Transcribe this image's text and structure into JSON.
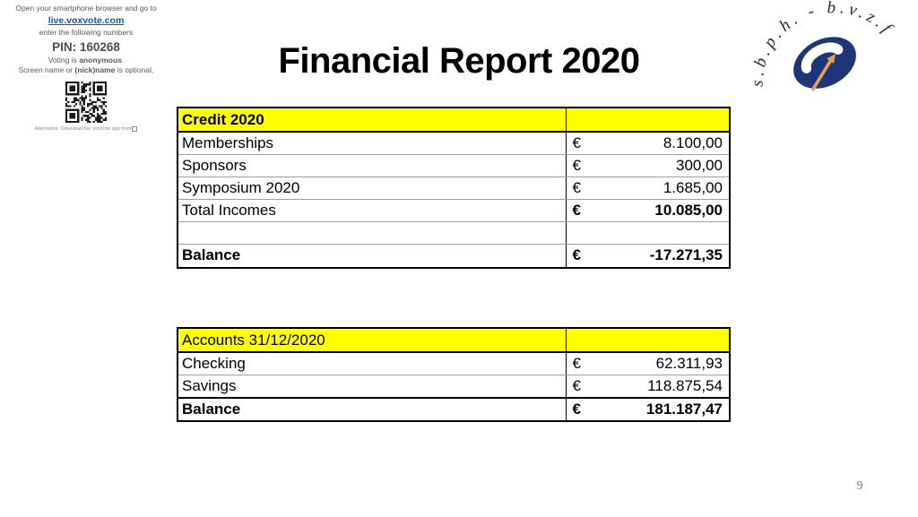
{
  "voxvote_panel": {
    "line1": "Open your smartphone browser and go to",
    "link": "live.voxvote.com",
    "line2": "enter the following numbers",
    "pin": "PIN: 160268",
    "line3_prefix": "Voting is ",
    "line3_bold": "anonymous",
    "line3_suffix": ".",
    "line4_prefix": "Screen name or ",
    "line4_bold": "(nick)name",
    "line4_suffix": " is optional.",
    "alt_text": "Alternative: Download the VoxVote app from"
  },
  "title": "Financial Report 2020",
  "logo": {
    "arc_text": "s.b.p.h. - b.v.z.f"
  },
  "credit_table": {
    "header": "Credit 2020",
    "rows": [
      {
        "label": "Memberships",
        "currency": "€",
        "value": "8.100,00"
      },
      {
        "label": "Sponsors",
        "currency": "€",
        "value": "300,00"
      },
      {
        "label": "Symposium 2020",
        "currency": "€",
        "value": "1.685,00"
      },
      {
        "label": "Total Incomes",
        "currency": "€",
        "value": "10.085,00"
      },
      {
        "label": "",
        "currency": "",
        "value": ""
      },
      {
        "label": "Balance",
        "currency": "€",
        "value": "-17.271,35"
      }
    ]
  },
  "accounts_table": {
    "header": "Accounts 31/12/2020",
    "rows": [
      {
        "label": "Checking",
        "currency": "€",
        "value": "62.311,93"
      },
      {
        "label": "Savings",
        "currency": "€",
        "value": "118.875,54"
      },
      {
        "label": "Balance",
        "currency": "€",
        "value": "181.187,47"
      }
    ]
  },
  "page_number": "9",
  "colors": {
    "table_header_bg": "#ffff00",
    "link_blue": "#1455b4",
    "panel_text_gray": "#595959",
    "logo_navy": "#203478",
    "logo_arrow_orange": "#e2a156",
    "logo_text_brown": "#3a241a",
    "grid_line_gray": "#9e9e9e",
    "page_number_gray": "#6e6e78"
  }
}
